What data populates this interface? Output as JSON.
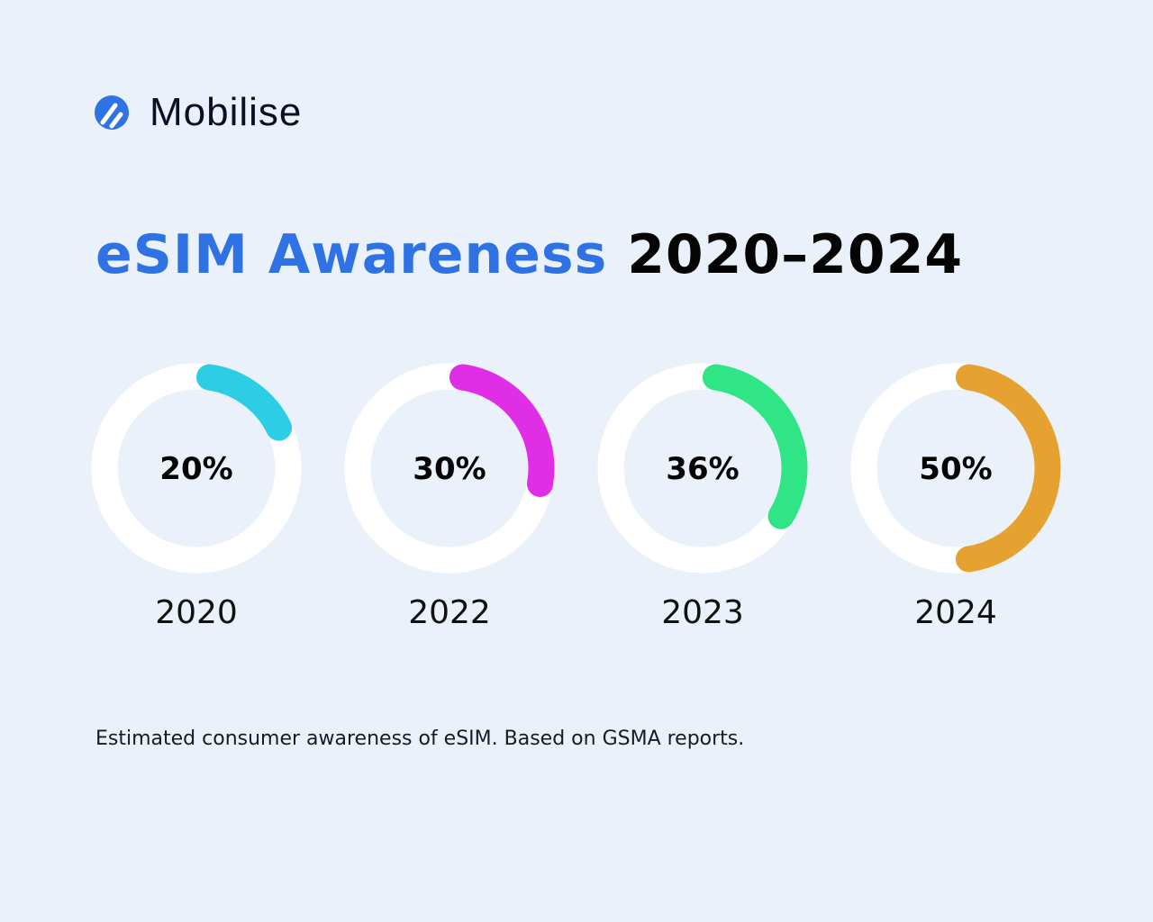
{
  "brand": {
    "name": "Mobilise",
    "logo_color": "#2f72e4"
  },
  "title": {
    "highlight": "eSIM Awareness",
    "rest": "2020–2024"
  },
  "chart_data": {
    "type": "donut",
    "title": "eSIM Awareness 2020–2024",
    "categories": [
      "2020",
      "2022",
      "2023",
      "2024"
    ],
    "values": [
      20,
      30,
      36,
      50
    ],
    "labels": [
      "20%",
      "30%",
      "36%",
      "50%"
    ],
    "colors": [
      "#2ecde6",
      "#e02de6",
      "#2fe585",
      "#e6a231"
    ],
    "track_color": "#ffffff",
    "max": 100
  },
  "footnote": "Estimated consumer awareness of eSIM. Based on GSMA reports."
}
